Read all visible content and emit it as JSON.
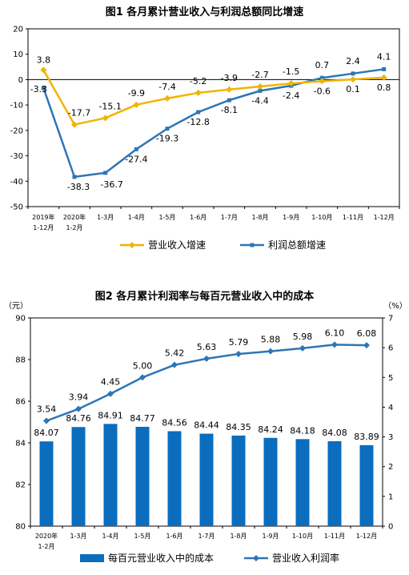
{
  "chart_data": [
    {
      "type": "line",
      "title": "图1  各月累计营业收入与利润总额同比增速",
      "xlabel": "",
      "ylabel": "",
      "categories": [
        [
          "2019年",
          "1-12月"
        ],
        [
          "2020年",
          "1-2月"
        ],
        [
          "1-3月"
        ],
        [
          "1-4月"
        ],
        [
          "1-5月"
        ],
        [
          "1-6月"
        ],
        [
          "1-7月"
        ],
        [
          "1-8月"
        ],
        [
          "1-9月"
        ],
        [
          "1-10月"
        ],
        [
          "1-11月"
        ],
        [
          "1-12月"
        ]
      ],
      "ylim": [
        -50,
        20
      ],
      "yticks": [
        -50,
        -40,
        -30,
        -20,
        -10,
        0,
        10,
        20
      ],
      "series": [
        {
          "name": "营业收入增速",
          "color": "#f0b400",
          "values": [
            3.8,
            -17.7,
            -15.1,
            -9.9,
            -7.4,
            -5.2,
            -3.9,
            -2.7,
            -1.5,
            -0.6,
            0.1,
            0.8
          ]
        },
        {
          "name": "利润总额增速",
          "color": "#2e75b6",
          "values": [
            -3.3,
            -38.3,
            -36.7,
            -27.4,
            -19.3,
            -12.8,
            -8.1,
            -4.4,
            -2.4,
            0.7,
            2.4,
            4.1
          ]
        }
      ],
      "labels": {
        "revenue": [
          "3.8",
          "-17.7",
          "-15.1",
          "-9.9",
          "-7.4",
          "-5.2",
          "-3.9",
          "-2.7",
          "-1.5",
          "-0.6",
          "0.1",
          "0.8"
        ],
        "profit": [
          "-3.3",
          "-38.3",
          "-36.7",
          "-27.4",
          "-19.3",
          "-12.8",
          "-8.1",
          "-4.4",
          "-2.4",
          "0.7",
          "2.4",
          "4.1"
        ]
      },
      "legend": "bottom",
      "grid": false
    },
    {
      "type": "bar+line",
      "title": "图2  各月累计利润率与每百元营业收入中的成本",
      "left_unit": "（元）",
      "right_unit": "（%）",
      "categories": [
        [
          "2020年",
          "1-2月"
        ],
        [
          "1-3月"
        ],
        [
          "1-4月"
        ],
        [
          "1-5月"
        ],
        [
          "1-6月"
        ],
        [
          "1-7月"
        ],
        [
          "1-8月"
        ],
        [
          "1-9月"
        ],
        [
          "1-10月"
        ],
        [
          "1-11月"
        ],
        [
          "1-12月"
        ]
      ],
      "ylim_left": [
        80,
        90
      ],
      "yticks_left": [
        80,
        82,
        84,
        86,
        88,
        90
      ],
      "ylim_right": [
        0,
        7
      ],
      "yticks_right": [
        0,
        1,
        2,
        3,
        4,
        5,
        6,
        7
      ],
      "series": [
        {
          "name": "每百元营业收入中的成本",
          "kind": "bar",
          "axis": "left",
          "color": "#0b6dbd",
          "values": [
            84.07,
            84.76,
            84.91,
            84.77,
            84.56,
            84.44,
            84.35,
            84.24,
            84.18,
            84.08,
            83.89
          ],
          "labels": [
            "84.07",
            "84.76",
            "84.91",
            "84.77",
            "84.56",
            "84.44",
            "84.35",
            "84.24",
            "84.18",
            "84.08",
            "83.89"
          ]
        },
        {
          "name": "营业收入利润率",
          "kind": "line",
          "axis": "right",
          "color": "#2e75b6",
          "values": [
            3.54,
            3.94,
            4.45,
            5.0,
            5.42,
            5.63,
            5.79,
            5.88,
            5.98,
            6.1,
            6.08
          ],
          "labels": [
            "3.54",
            "3.94",
            "4.45",
            "5.00",
            "5.42",
            "5.63",
            "5.79",
            "5.88",
            "5.98",
            "6.10",
            "6.08"
          ]
        }
      ],
      "legend": "bottom",
      "grid": false
    }
  ]
}
